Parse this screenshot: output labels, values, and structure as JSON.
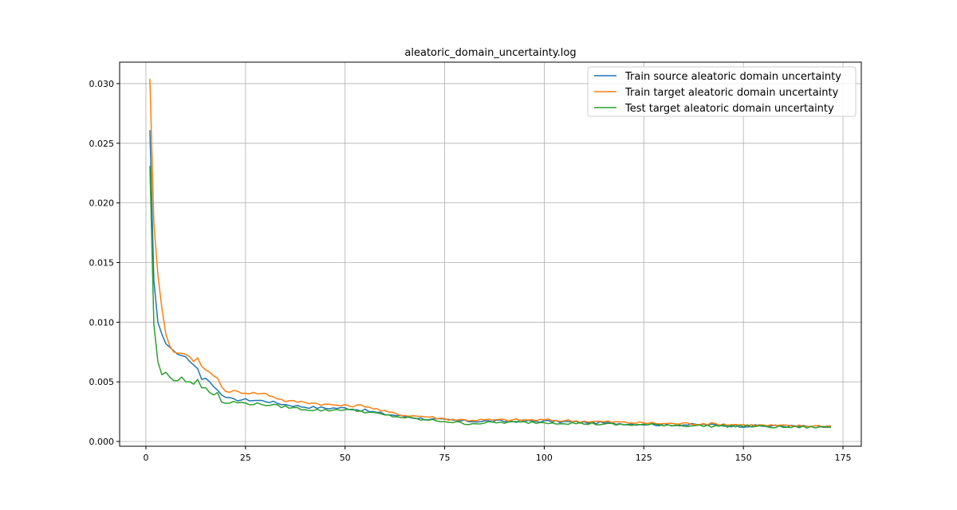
{
  "chart_data": {
    "type": "line",
    "title": "aleatoric_domain_uncertainty.log",
    "xlabel": "",
    "ylabel": "",
    "xlim": [
      -6.6,
      179.6
    ],
    "ylim": [
      -0.0004,
      0.0318
    ],
    "xticks": [
      0,
      25,
      50,
      75,
      100,
      125,
      150,
      175
    ],
    "yticks": [
      0.0,
      0.005,
      0.01,
      0.015,
      0.02,
      0.025,
      0.03
    ],
    "xtick_labels": [
      "0",
      "25",
      "50",
      "75",
      "100",
      "125",
      "150",
      "175"
    ],
    "ytick_labels": [
      "0.000",
      "0.005",
      "0.010",
      "0.015",
      "0.020",
      "0.025",
      "0.030"
    ],
    "grid": true,
    "legend_position": "top-right",
    "series": [
      {
        "name": "Train source aleatoric domain uncertainty",
        "color": "#1f77b4",
        "anchors": [
          [
            1,
            0.0261
          ],
          [
            2,
            0.0135
          ],
          [
            3,
            0.01
          ],
          [
            4,
            0.009
          ],
          [
            5,
            0.0082
          ],
          [
            6,
            0.0079
          ],
          [
            7,
            0.0076
          ],
          [
            8,
            0.0073
          ],
          [
            9,
            0.0072
          ],
          [
            10,
            0.0071
          ],
          [
            11,
            0.0067
          ],
          [
            12,
            0.0064
          ],
          [
            13,
            0.0061
          ],
          [
            14,
            0.0052
          ],
          [
            15,
            0.0053
          ],
          [
            16,
            0.005
          ],
          [
            17,
            0.0046
          ],
          [
            18,
            0.0043
          ],
          [
            19,
            0.0039
          ],
          [
            20,
            0.0037
          ],
          [
            22,
            0.0035
          ],
          [
            25,
            0.0035
          ],
          [
            30,
            0.0034
          ],
          [
            35,
            0.0031
          ],
          [
            40,
            0.0029
          ],
          [
            45,
            0.0028
          ],
          [
            50,
            0.0028
          ],
          [
            55,
            0.0026
          ],
          [
            60,
            0.0023
          ],
          [
            65,
            0.0021
          ],
          [
            70,
            0.0019
          ],
          [
            75,
            0.0018
          ],
          [
            80,
            0.0017
          ],
          [
            90,
            0.0017
          ],
          [
            100,
            0.0017
          ],
          [
            110,
            0.0016
          ],
          [
            120,
            0.0015
          ],
          [
            130,
            0.0014
          ],
          [
            140,
            0.0014
          ],
          [
            150,
            0.0013
          ],
          [
            160,
            0.0013
          ],
          [
            172,
            0.0012
          ]
        ]
      },
      {
        "name": "Train target aleatoric domain uncertainty",
        "color": "#ff7f0e",
        "anchors": [
          [
            1,
            0.0304
          ],
          [
            2,
            0.0183
          ],
          [
            3,
            0.014
          ],
          [
            4,
            0.0112
          ],
          [
            5,
            0.009
          ],
          [
            6,
            0.008
          ],
          [
            7,
            0.0075
          ],
          [
            8,
            0.0074
          ],
          [
            9,
            0.0074
          ],
          [
            10,
            0.0073
          ],
          [
            11,
            0.0071
          ],
          [
            12,
            0.0067
          ],
          [
            13,
            0.007
          ],
          [
            14,
            0.0063
          ],
          [
            15,
            0.006
          ],
          [
            16,
            0.0058
          ],
          [
            17,
            0.0055
          ],
          [
            18,
            0.0053
          ],
          [
            19,
            0.0046
          ],
          [
            20,
            0.0042
          ],
          [
            22,
            0.0042
          ],
          [
            25,
            0.0041
          ],
          [
            30,
            0.004
          ],
          [
            35,
            0.0034
          ],
          [
            40,
            0.0033
          ],
          [
            45,
            0.0031
          ],
          [
            50,
            0.003
          ],
          [
            55,
            0.003
          ],
          [
            60,
            0.0025
          ],
          [
            65,
            0.0022
          ],
          [
            70,
            0.0021
          ],
          [
            75,
            0.0019
          ],
          [
            80,
            0.0018
          ],
          [
            90,
            0.0018
          ],
          [
            100,
            0.0018
          ],
          [
            110,
            0.0017
          ],
          [
            120,
            0.0016
          ],
          [
            130,
            0.0015
          ],
          [
            140,
            0.0015
          ],
          [
            150,
            0.0014
          ],
          [
            160,
            0.0013
          ],
          [
            172,
            0.0013
          ]
        ]
      },
      {
        "name": "Test target aleatoric domain uncertainty",
        "color": "#2ca02c",
        "anchors": [
          [
            1,
            0.0231
          ],
          [
            2,
            0.0098
          ],
          [
            3,
            0.0067
          ],
          [
            4,
            0.0056
          ],
          [
            5,
            0.0058
          ],
          [
            6,
            0.0054
          ],
          [
            7,
            0.0051
          ],
          [
            8,
            0.0051
          ],
          [
            9,
            0.0054
          ],
          [
            10,
            0.005
          ],
          [
            11,
            0.005
          ],
          [
            12,
            0.0048
          ],
          [
            13,
            0.0052
          ],
          [
            14,
            0.0045
          ],
          [
            15,
            0.0045
          ],
          [
            16,
            0.0041
          ],
          [
            17,
            0.0039
          ],
          [
            18,
            0.0041
          ],
          [
            19,
            0.0033
          ],
          [
            20,
            0.0032
          ],
          [
            22,
            0.0033
          ],
          [
            25,
            0.0032
          ],
          [
            30,
            0.0031
          ],
          [
            35,
            0.0029
          ],
          [
            40,
            0.0027
          ],
          [
            45,
            0.0026
          ],
          [
            50,
            0.0027
          ],
          [
            55,
            0.0025
          ],
          [
            60,
            0.0022
          ],
          [
            65,
            0.002
          ],
          [
            70,
            0.0018
          ],
          [
            75,
            0.0017
          ],
          [
            80,
            0.0015
          ],
          [
            90,
            0.0016
          ],
          [
            100,
            0.0016
          ],
          [
            110,
            0.0015
          ],
          [
            120,
            0.0014
          ],
          [
            130,
            0.0014
          ],
          [
            140,
            0.0013
          ],
          [
            150,
            0.0013
          ],
          [
            160,
            0.0012
          ],
          [
            172,
            0.0012
          ]
        ]
      }
    ]
  }
}
